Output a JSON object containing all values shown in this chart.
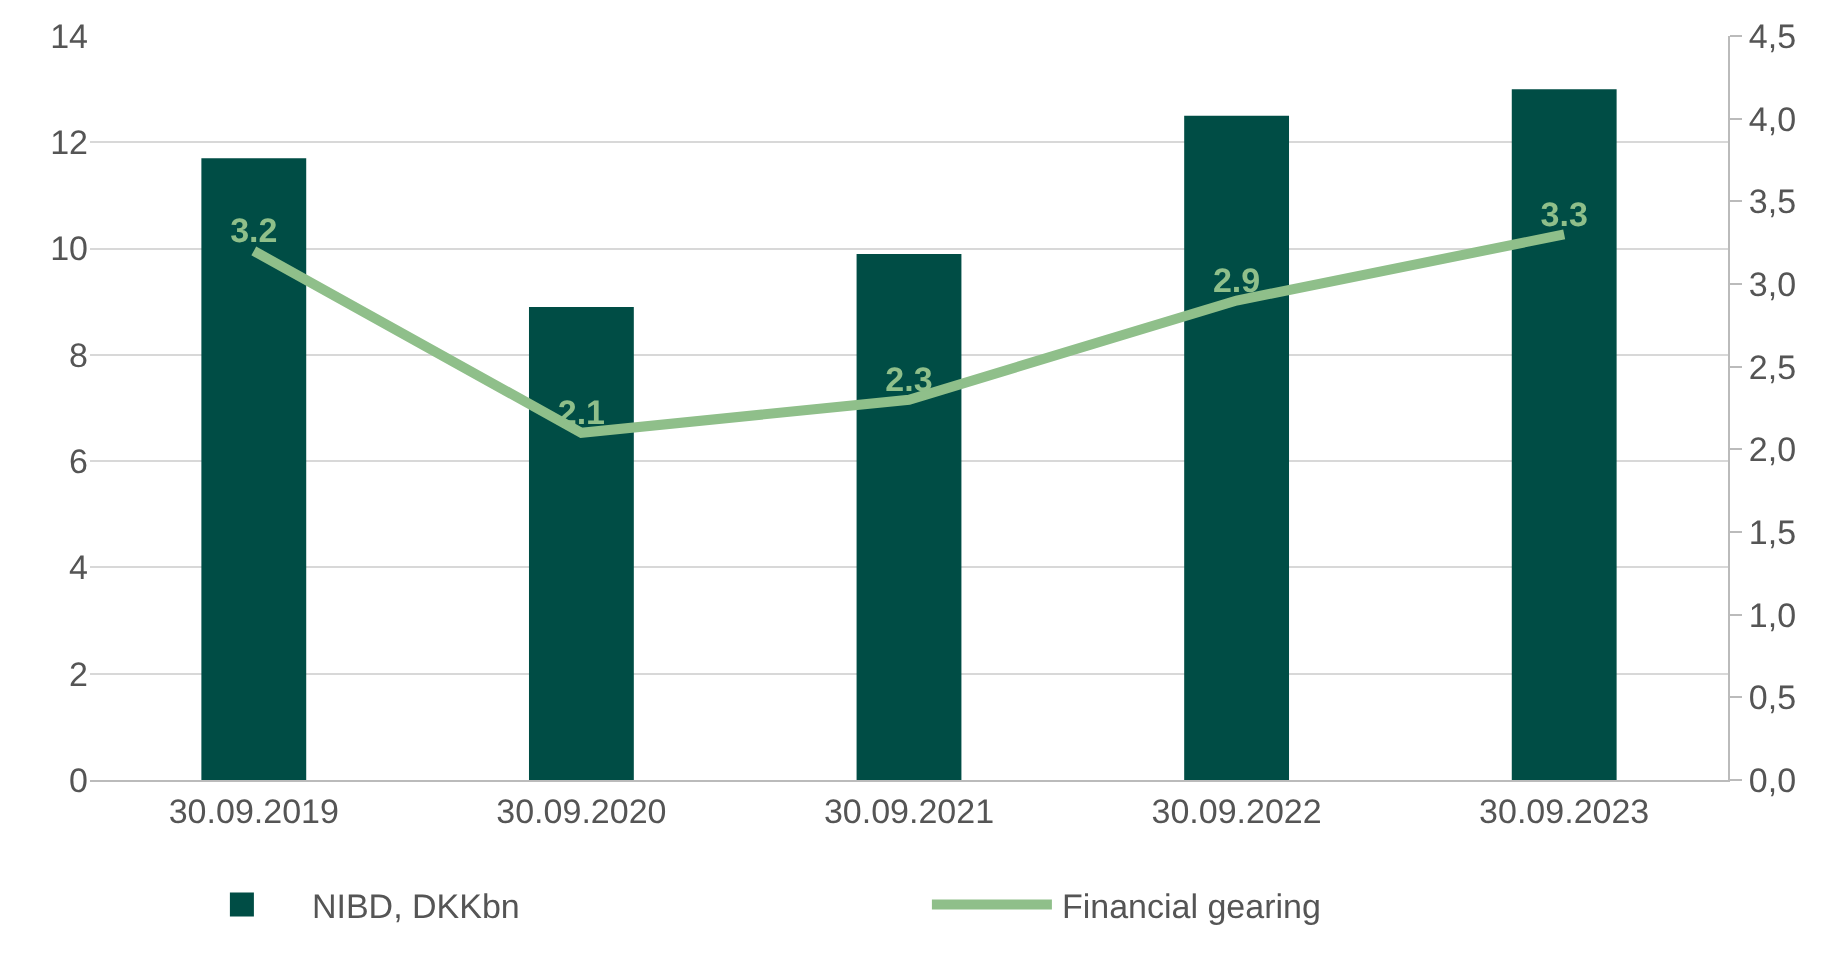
{
  "chart_data": {
    "type": "bar",
    "categories": [
      "30.09.2019",
      "30.09.2020",
      "30.09.2021",
      "30.09.2022",
      "30.09.2023"
    ],
    "series": [
      {
        "name": "NIBD, DKKbn",
        "color": "#004d45",
        "values": [
          11.7,
          8.9,
          9.9,
          12.5,
          13.0
        ]
      },
      {
        "name": "Financial gearing",
        "type": "line",
        "axis": "y2",
        "color": "#8fbf8a",
        "values": [
          3.2,
          2.1,
          2.3,
          2.9,
          3.3
        ],
        "value_labels": [
          "3.2",
          "2.1",
          "2.3",
          "2.9",
          "3.3"
        ]
      }
    ],
    "ylim": [
      0,
      14
    ],
    "yticks": [
      0,
      2,
      4,
      6,
      8,
      10,
      12,
      14
    ],
    "y2lim": [
      0,
      4.5
    ],
    "y2ticks": [
      {
        "value": 0,
        "label": "0,0"
      },
      {
        "value": 0.5,
        "label": "0,5"
      },
      {
        "value": 1,
        "label": "1,0"
      },
      {
        "value": 1.5,
        "label": "1,5"
      },
      {
        "value": 2,
        "label": "2,0"
      },
      {
        "value": 2.5,
        "label": "2,5"
      },
      {
        "value": 3,
        "label": "3,0"
      },
      {
        "value": 3.5,
        "label": "3,5"
      },
      {
        "value": 4,
        "label": "4,0"
      },
      {
        "value": 4.5,
        "label": "4,5"
      }
    ],
    "grid": "y",
    "legend": "bottom left",
    "marker": "none",
    "line_style": "solid"
  }
}
